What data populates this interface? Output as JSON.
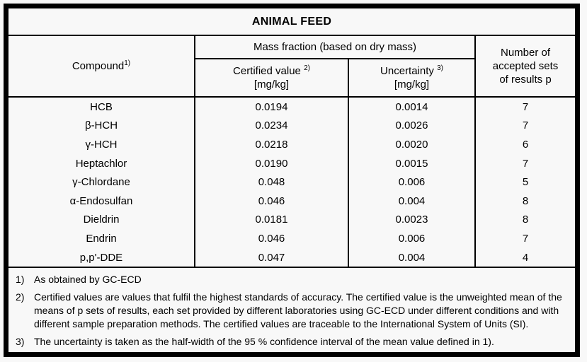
{
  "colors": {
    "background": "#f8f8f8",
    "border": "#000000",
    "text": "#000000"
  },
  "table": {
    "title": "ANIMAL FEED",
    "headers": {
      "compound": "Compound",
      "compound_sup": "1)",
      "mass_fraction": "Mass fraction (based on dry mass)",
      "certified": "Certified value",
      "certified_sup": "2)",
      "certified_unit": "[mg/kg]",
      "uncertainty": "Uncertainty",
      "uncertainty_sup": "3)",
      "uncertainty_unit": "[mg/kg]",
      "accepted_line1": "Number of",
      "accepted_line2": "accepted sets",
      "accepted_line3": "of results p"
    },
    "rows": [
      {
        "compound": "HCB",
        "certified": "0.0194",
        "uncertainty": "0.0014",
        "n": "7"
      },
      {
        "compound": "β-HCH",
        "certified": "0.0234",
        "uncertainty": "0.0026",
        "n": "7"
      },
      {
        "compound": "γ-HCH",
        "certified": "0.0218",
        "uncertainty": "0.0020",
        "n": "6"
      },
      {
        "compound": "Heptachlor",
        "certified": "0.0190",
        "uncertainty": "0.0015",
        "n": "7"
      },
      {
        "compound": "γ-Chlordane",
        "certified": "0.048",
        "uncertainty": "0.006",
        "n": "5"
      },
      {
        "compound": "α-Endosulfan",
        "certified": "0.046",
        "uncertainty": "0.004",
        "n": "8"
      },
      {
        "compound": "Dieldrin",
        "certified": "0.0181",
        "uncertainty": "0.0023",
        "n": "8"
      },
      {
        "compound": "Endrin",
        "certified": "0.046",
        "uncertainty": "0.006",
        "n": "7"
      },
      {
        "compound": "p,p'-DDE",
        "certified": "0.047",
        "uncertainty": "0.004",
        "n": "4"
      }
    ]
  },
  "footnotes": [
    {
      "label": "1)",
      "text": "As obtained by GC-ECD"
    },
    {
      "label": "2)",
      "text": "Certified values are values that fulfil the highest standards of accuracy. The certified value is the unweighted mean of the means of p sets of results, each set provided by different laboratories using GC-ECD under different conditions and with different sample preparation methods. The certified values are traceable to the International System of Units (SI)."
    },
    {
      "label": "3)",
      "text": "The uncertainty is taken as the half-width of the 95 % confidence interval of the mean value defined in 1)."
    }
  ]
}
